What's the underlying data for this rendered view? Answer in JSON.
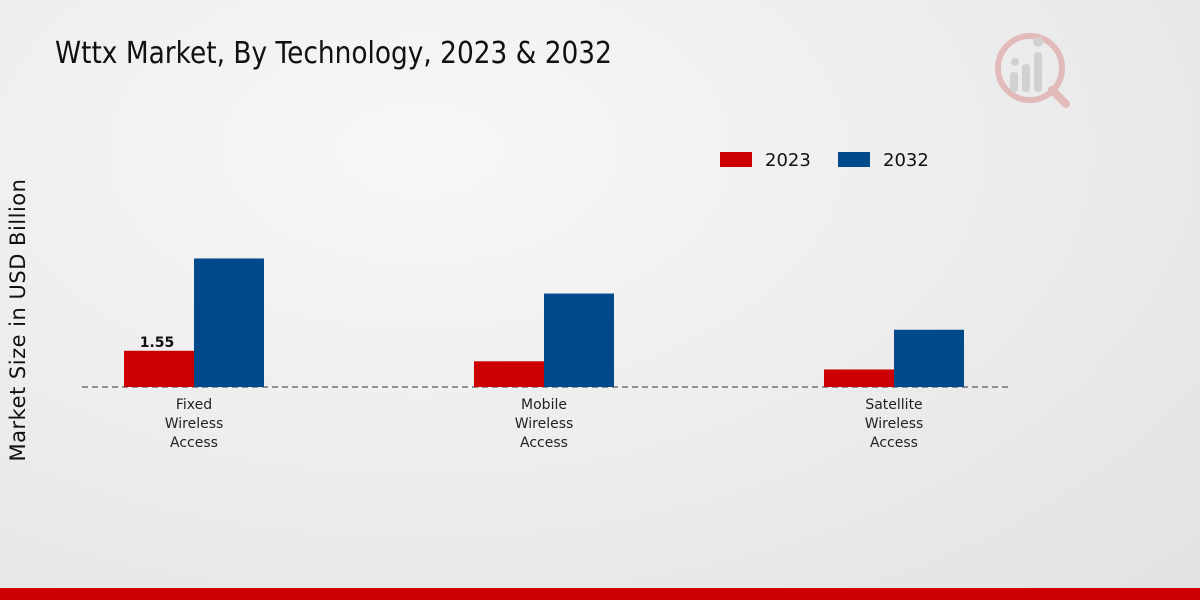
{
  "title": "Wttx Market, By Technology, 2023 & 2032",
  "ylabel": "Market Size in USD Billion",
  "logo_icon": "market-research-logo-icon",
  "colors": {
    "2023": "#cc0000",
    "2032": "#004a8c",
    "brand_bar": "#cc0000"
  },
  "chart_data": {
    "type": "bar",
    "title": "Wttx Market, By Technology, 2023 & 2032",
    "xlabel": "",
    "ylabel": "Market Size in USD Billion",
    "categories": [
      [
        "Fixed",
        "Wireless",
        "Access"
      ],
      [
        "Mobile",
        "Wireless",
        "Access"
      ],
      [
        "Satellite",
        "Wireless",
        "Access"
      ]
    ],
    "series": [
      {
        "name": "2023",
        "values": [
          1.55,
          1.1,
          0.75
        ]
      },
      {
        "name": "2032",
        "values": [
          5.5,
          4.0,
          2.45
        ]
      }
    ],
    "data_labels": [
      {
        "series": 0,
        "index": 0,
        "text": "1.55"
      }
    ],
    "ylim": [
      0,
      9.5
    ],
    "legend": "top-right",
    "grid": false
  }
}
